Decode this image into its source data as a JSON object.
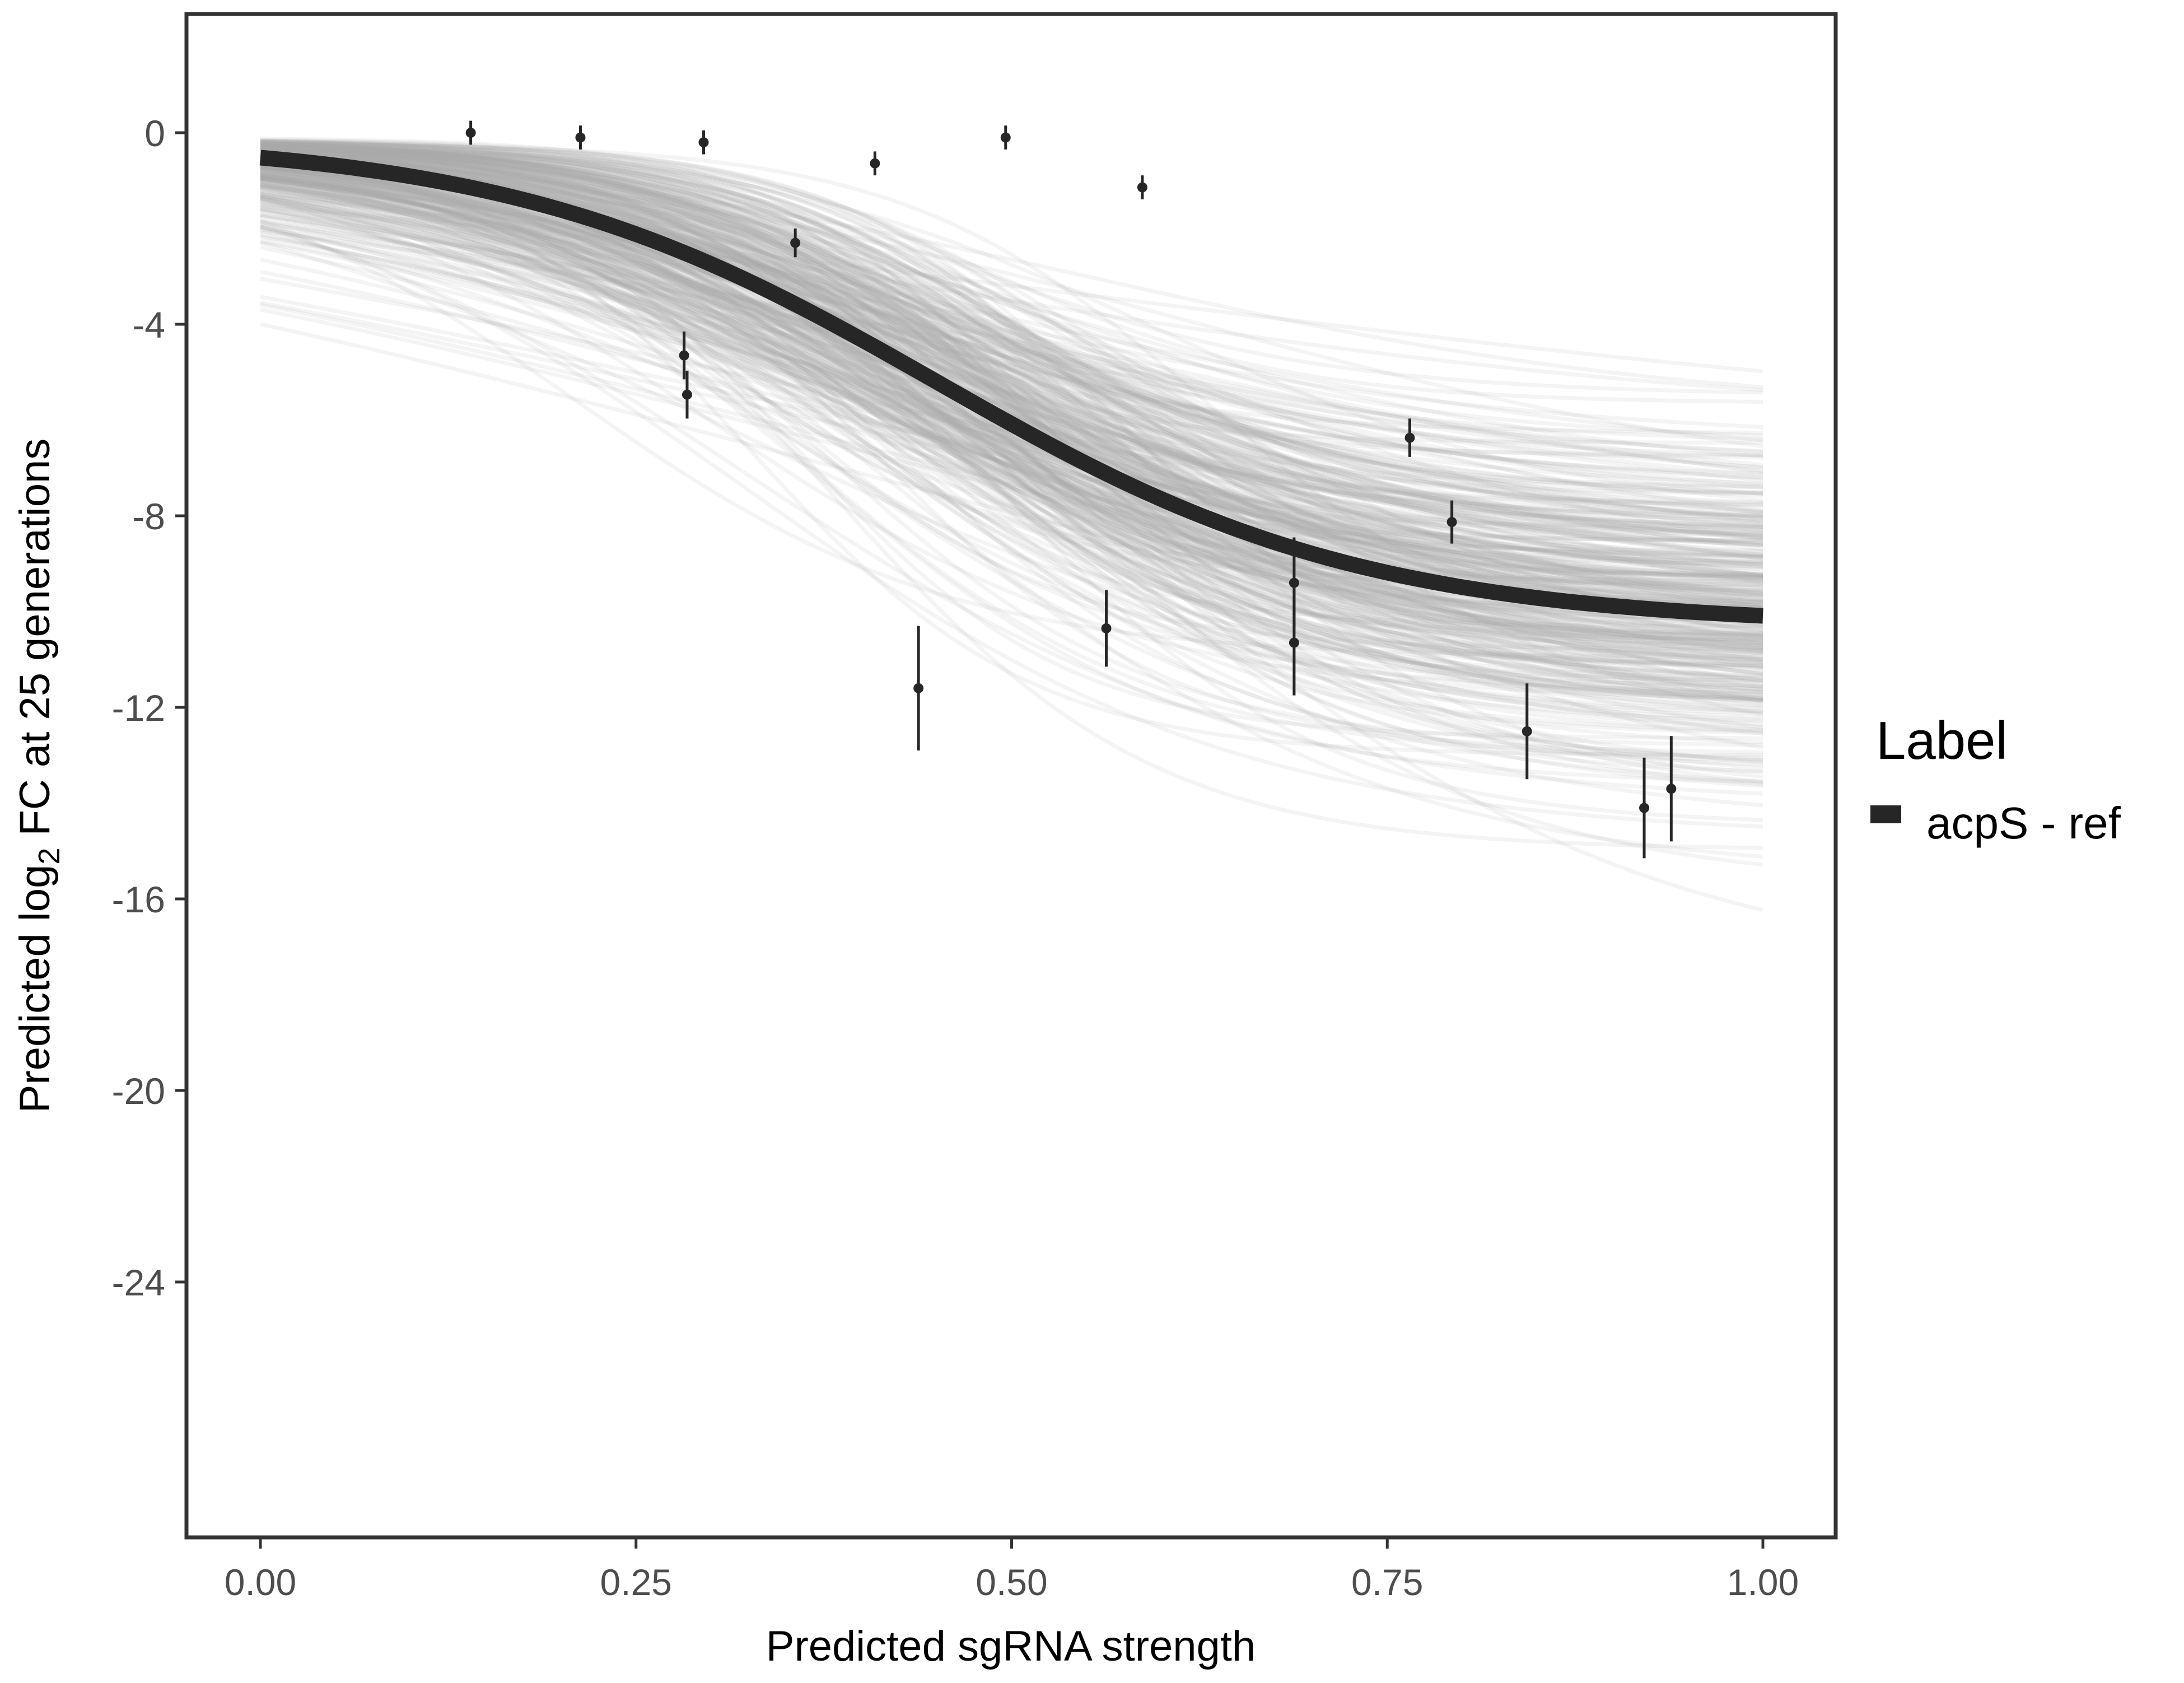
{
  "chart_data": {
    "type": "line",
    "title": "",
    "xlabel": "Predicted sgRNA strength",
    "ylabel_parts": [
      "Predicted  log",
      "2",
      " FC at 25 generations"
    ],
    "xlim": [
      -0.05,
      1.05
    ],
    "ylim": [
      -29.5,
      2.5
    ],
    "xticks": [
      0,
      0.25,
      0.5,
      0.75,
      1
    ],
    "xtick_labels": [
      "0.00",
      "0.25",
      "0.50",
      "0.75",
      "1.00"
    ],
    "yticks": [
      0,
      -4,
      -8,
      -12,
      -16,
      -20,
      -24
    ],
    "ytick_labels": [
      "0",
      "-4",
      "-8",
      "-12",
      "-16",
      "-20",
      "-24"
    ],
    "grid": false,
    "legend": {
      "title": "Label",
      "placement": "right",
      "entries": [
        {
          "label": "acpS - ref",
          "color": "#262626"
        }
      ]
    },
    "fit_curve": {
      "name": "acpS - ref",
      "model": "logistic",
      "upper": -0.1,
      "lower": -10.3,
      "midpoint": 0.45,
      "slope": 7,
      "color": "#262626"
    },
    "posterior_draws": {
      "n": 400,
      "color": "#aaaaaa",
      "midpoint_sd": 0.06,
      "slope_sd": 2.2,
      "lower_sd": 1.9,
      "upper_sd": 0.1
    },
    "points": [
      {
        "x": 0.14,
        "y": 0.0,
        "err": 0.25
      },
      {
        "x": 0.213,
        "y": -0.1,
        "err": 0.25
      },
      {
        "x": 0.295,
        "y": -0.2,
        "err": 0.25
      },
      {
        "x": 0.356,
        "y": -2.3,
        "err": 0.3
      },
      {
        "x": 0.282,
        "y": -4.65,
        "err": 0.5
      },
      {
        "x": 0.284,
        "y": -5.47,
        "err": 0.5
      },
      {
        "x": 0.409,
        "y": -0.64,
        "err": 0.25
      },
      {
        "x": 0.496,
        "y": -0.1,
        "err": 0.25
      },
      {
        "x": 0.587,
        "y": -1.14,
        "err": 0.25
      },
      {
        "x": 0.438,
        "y": -11.6,
        "err": 1.3
      },
      {
        "x": 0.563,
        "y": -10.35,
        "err": 0.8
      },
      {
        "x": 0.688,
        "y": -9.4,
        "err": 0.95
      },
      {
        "x": 0.688,
        "y": -10.65,
        "err": 1.1
      },
      {
        "x": 0.765,
        "y": -6.37,
        "err": 0.4
      },
      {
        "x": 0.793,
        "y": -8.13,
        "err": 0.45
      },
      {
        "x": 0.843,
        "y": -12.5,
        "err": 1.0
      },
      {
        "x": 0.921,
        "y": -14.1,
        "err": 1.05
      },
      {
        "x": 0.939,
        "y": -13.7,
        "err": 1.1
      }
    ]
  }
}
